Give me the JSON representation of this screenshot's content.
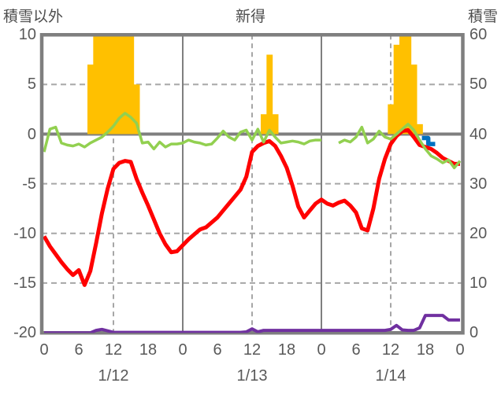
{
  "header": {
    "left_axis_title": "積雪以外",
    "title": "新得",
    "right_axis_title": "積雪"
  },
  "colors": {
    "bars": "#FFC000",
    "temperature": "#FF0000",
    "green_series": "#92D050",
    "snow_depth": "#7030A0",
    "blue_marker": "#0070C0",
    "frame": "#7F7F7F",
    "grid": "#A6A6A6",
    "text": "#595959"
  },
  "chart_data": {
    "type": "line+bar",
    "title": "新得",
    "x_axis": {
      "unit": "hour",
      "start": 0,
      "end": 72,
      "tick_hours": [
        0,
        6,
        12,
        18,
        24,
        30,
        36,
        42,
        48,
        54,
        60,
        66,
        72
      ],
      "tick_labels": [
        "0",
        "6",
        "12",
        "18",
        "0",
        "6",
        "12",
        "18",
        "0",
        "6",
        "12",
        "18",
        "0"
      ],
      "date_labels": [
        {
          "hour": 12,
          "label": "1/12"
        },
        {
          "hour": 36,
          "label": "1/13"
        },
        {
          "hour": 60,
          "label": "1/14"
        }
      ],
      "solid_gridline_hours": [
        24,
        48
      ],
      "dashed_gridline_hours": [
        12,
        36,
        60
      ]
    },
    "left_axis": {
      "title": "積雪以外",
      "range": [
        -20,
        10
      ],
      "ticks": [
        10,
        5,
        0,
        -5,
        -10,
        -15,
        -20
      ],
      "zero_line": true
    },
    "right_axis": {
      "title": "積雪",
      "range": [
        0,
        60
      ],
      "ticks": [
        60,
        50,
        40,
        30,
        20,
        10,
        0
      ]
    },
    "series": [
      {
        "name": "precipitation-bars",
        "type": "bar",
        "axis": "left",
        "color": "#FFC000",
        "note": "hourly bars, values >=10 clipped at plot top",
        "values": [
          0,
          0,
          0,
          0,
          0,
          0,
          0,
          0,
          7,
          10,
          10,
          10,
          10,
          10,
          10,
          10,
          5,
          0,
          0,
          0,
          0,
          0,
          0,
          0,
          0,
          0,
          0,
          0,
          0,
          0,
          0,
          0,
          0,
          0,
          0,
          0,
          0,
          0,
          2,
          8,
          2,
          0,
          0,
          0,
          0,
          0,
          0,
          0,
          0,
          0,
          0,
          0,
          0,
          0,
          0,
          0,
          0,
          0,
          0,
          0,
          3,
          9,
          10,
          10,
          7,
          1,
          0,
          0,
          0,
          0,
          0,
          0,
          0
        ]
      },
      {
        "name": "temperature-line",
        "type": "line",
        "axis": "left",
        "color": "#FF0000",
        "values": [
          -10.3,
          -11.3,
          -12.1,
          -12.9,
          -13.6,
          -14.2,
          -13.7,
          -15.2,
          -13.8,
          -11.0,
          -8.0,
          -5.5,
          -3.5,
          -2.9,
          -2.7,
          -2.8,
          -4.5,
          -5.9,
          -7.2,
          -8.6,
          -10.0,
          -11.1,
          -11.9,
          -11.8,
          -11.2,
          -10.6,
          -10.1,
          -9.6,
          -9.4,
          -8.9,
          -8.4,
          -7.7,
          -7.0,
          -6.3,
          -5.6,
          -4.3,
          -1.8,
          -1.2,
          -0.9,
          -0.7,
          -1.2,
          -2.2,
          -3.4,
          -5.2,
          -7.3,
          -8.4,
          -7.7,
          -7.0,
          -6.6,
          -7.0,
          -7.2,
          -6.9,
          -6.7,
          -7.2,
          -7.9,
          -9.5,
          -9.7,
          -7.5,
          -4.5,
          -2.5,
          -1.0,
          -0.2,
          0.3,
          0.4,
          -0.3,
          -1.1,
          -1.3,
          -1.5,
          -1.9,
          -2.4,
          -2.7,
          -3.0,
          -3.0
        ]
      },
      {
        "name": "green-series-line",
        "type": "line",
        "axis": "left",
        "color": "#92D050",
        "note": "gap (missing data) around hours 49-50",
        "values": [
          -1.8,
          0.5,
          0.7,
          -0.9,
          -1.1,
          -1.2,
          -1.0,
          -1.3,
          -0.9,
          -0.6,
          -0.3,
          0.2,
          0.8,
          1.6,
          2.1,
          1.7,
          1.1,
          -0.9,
          -0.8,
          -1.5,
          -0.8,
          -1.3,
          -1.0,
          -1.0,
          -0.9,
          -0.6,
          -0.8,
          -0.9,
          -1.1,
          -1.0,
          -0.4,
          0.3,
          -0.3,
          -0.6,
          0.2,
          0.4,
          -0.6,
          0.5,
          -0.8,
          0.4,
          -0.3,
          -0.9,
          -0.8,
          -0.7,
          -0.8,
          -1.0,
          -0.7,
          -0.6,
          -0.6,
          null,
          null,
          -0.9,
          -0.6,
          -0.8,
          -0.3,
          0.7,
          -0.9,
          -0.5,
          0.3,
          -0.3,
          -0.5,
          0.0,
          0.5,
          1.0,
          0.4,
          -0.6,
          -1.5,
          -2.2,
          -2.5,
          -2.9,
          -2.6,
          -3.4,
          -2.7
        ]
      },
      {
        "name": "snow-depth-line",
        "type": "line",
        "axis": "right",
        "color": "#7030A0",
        "values": [
          0,
          0,
          0,
          0,
          0,
          0,
          0,
          0,
          0,
          0.5,
          0.7,
          0.4,
          0.1,
          0.1,
          0.1,
          0.1,
          0.1,
          0.1,
          0.1,
          0.1,
          0.1,
          0.1,
          0.1,
          0.1,
          0.1,
          0.1,
          0.1,
          0.1,
          0.1,
          0.1,
          0.1,
          0.1,
          0.1,
          0.1,
          0.1,
          0.2,
          0.8,
          0.2,
          0.5,
          0.5,
          0.5,
          0.5,
          0.5,
          0.5,
          0.5,
          0.5,
          0.5,
          0.5,
          0.5,
          0.5,
          0.5,
          0.5,
          0.5,
          0.5,
          0.5,
          0.5,
          0.5,
          0.5,
          0.5,
          0.5,
          0.7,
          1.5,
          0.6,
          0.5,
          0.5,
          1.0,
          3.5,
          3.5,
          3.5,
          3.5,
          2.6,
          2.6,
          2.6
        ]
      },
      {
        "name": "blue-step-marker",
        "type": "step-line",
        "axis": "left",
        "color": "#0070C0",
        "points": [
          [
            65.4,
            -0.4
          ],
          [
            66.5,
            -0.4
          ],
          [
            66.5,
            -1.0
          ],
          [
            67.7,
            -1.0
          ]
        ]
      }
    ]
  }
}
